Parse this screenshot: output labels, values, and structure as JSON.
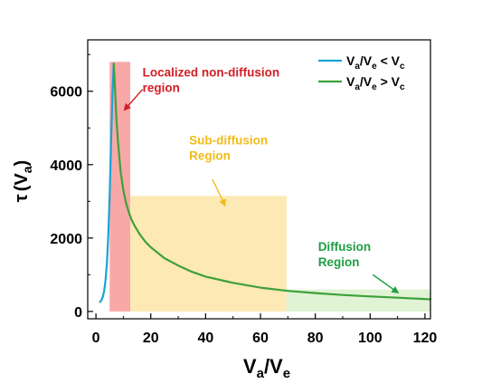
{
  "chart_data": {
    "type": "line",
    "xlabel": {
      "main": "V",
      "sub1": "a",
      "sep": "/V",
      "sub2": "e"
    },
    "ylabel": {
      "tau": "τ",
      "open": "(",
      "v": "V",
      "sub": "a",
      "close": ")"
    },
    "xlim": [
      -3,
      122
    ],
    "ylim": [
      -200,
      7400
    ],
    "x_ticks": [
      0,
      20,
      40,
      60,
      80,
      100,
      120
    ],
    "y_ticks": [
      0,
      2000,
      4000,
      6000
    ],
    "legend": {
      "placement": "top-right",
      "entries": [
        {
          "pre": "V",
          "sub1": "a",
          "mid": "/V",
          "sub2": "e",
          "op": " < V",
          "sub3": "c",
          "color": "#1aa3d4"
        },
        {
          "pre": "V",
          "sub1": "a",
          "mid": "/V",
          "sub2": "e",
          "op": " > V",
          "sub3": "c",
          "color": "#3da13a"
        }
      ]
    },
    "series": [
      {
        "color": "#1aa3d4",
        "x": [
          1.5,
          2.0,
          2.5,
          3.0,
          3.5,
          4.0,
          4.5,
          5.0,
          5.5,
          6.0,
          6.5
        ],
        "y": [
          260,
          310,
          400,
          560,
          850,
          1300,
          2050,
          3200,
          4600,
          5900,
          6750
        ]
      },
      {
        "color": "#3da13a",
        "x": [
          6.5,
          7,
          7.5,
          8,
          9,
          10,
          11,
          12,
          13,
          14,
          16,
          18,
          20,
          25,
          30,
          35,
          40,
          50,
          60,
          70,
          80,
          90,
          100,
          110,
          122
        ],
        "y": [
          6750,
          6000,
          5200,
          4650,
          3800,
          3300,
          2950,
          2700,
          2500,
          2350,
          2100,
          1900,
          1750,
          1450,
          1250,
          1080,
          950,
          780,
          650,
          560,
          500,
          450,
          410,
          375,
          330
        ]
      }
    ],
    "regions": [
      {
        "x0": 5,
        "x1": 12.5,
        "y0": 0,
        "y1": 6800,
        "color": "#f9a8a8"
      },
      {
        "x0": 12.5,
        "x1": 69.5,
        "y0": 0,
        "y1": 3150,
        "color": "#fde9b4"
      },
      {
        "x0": 69.5,
        "x1": 122,
        "y0": 0,
        "y1": 600,
        "color": "#e0f3d4"
      }
    ],
    "annotations": [
      {
        "lines": [
          "Localized non-diffusion",
          "region"
        ],
        "color": "#d01f26",
        "text_x": 17,
        "text_y": 6400,
        "arrow_from": [
          17,
          6050
        ],
        "arrow_to": [
          10.5,
          5500
        ]
      },
      {
        "lines": [
          "Sub-diffusion",
          "Region"
        ],
        "color": "#f0bb1a",
        "text_x": 34,
        "text_y": 4550,
        "arrow_from": [
          42.5,
          3600
        ],
        "arrow_to": [
          47,
          2900
        ]
      },
      {
        "lines": [
          "Diffusion",
          "Region"
        ],
        "color": "#1f9e43",
        "text_x": 81,
        "text_y": 1650,
        "arrow_from": [
          101,
          1000
        ],
        "arrow_to": [
          110,
          520
        ]
      }
    ]
  }
}
